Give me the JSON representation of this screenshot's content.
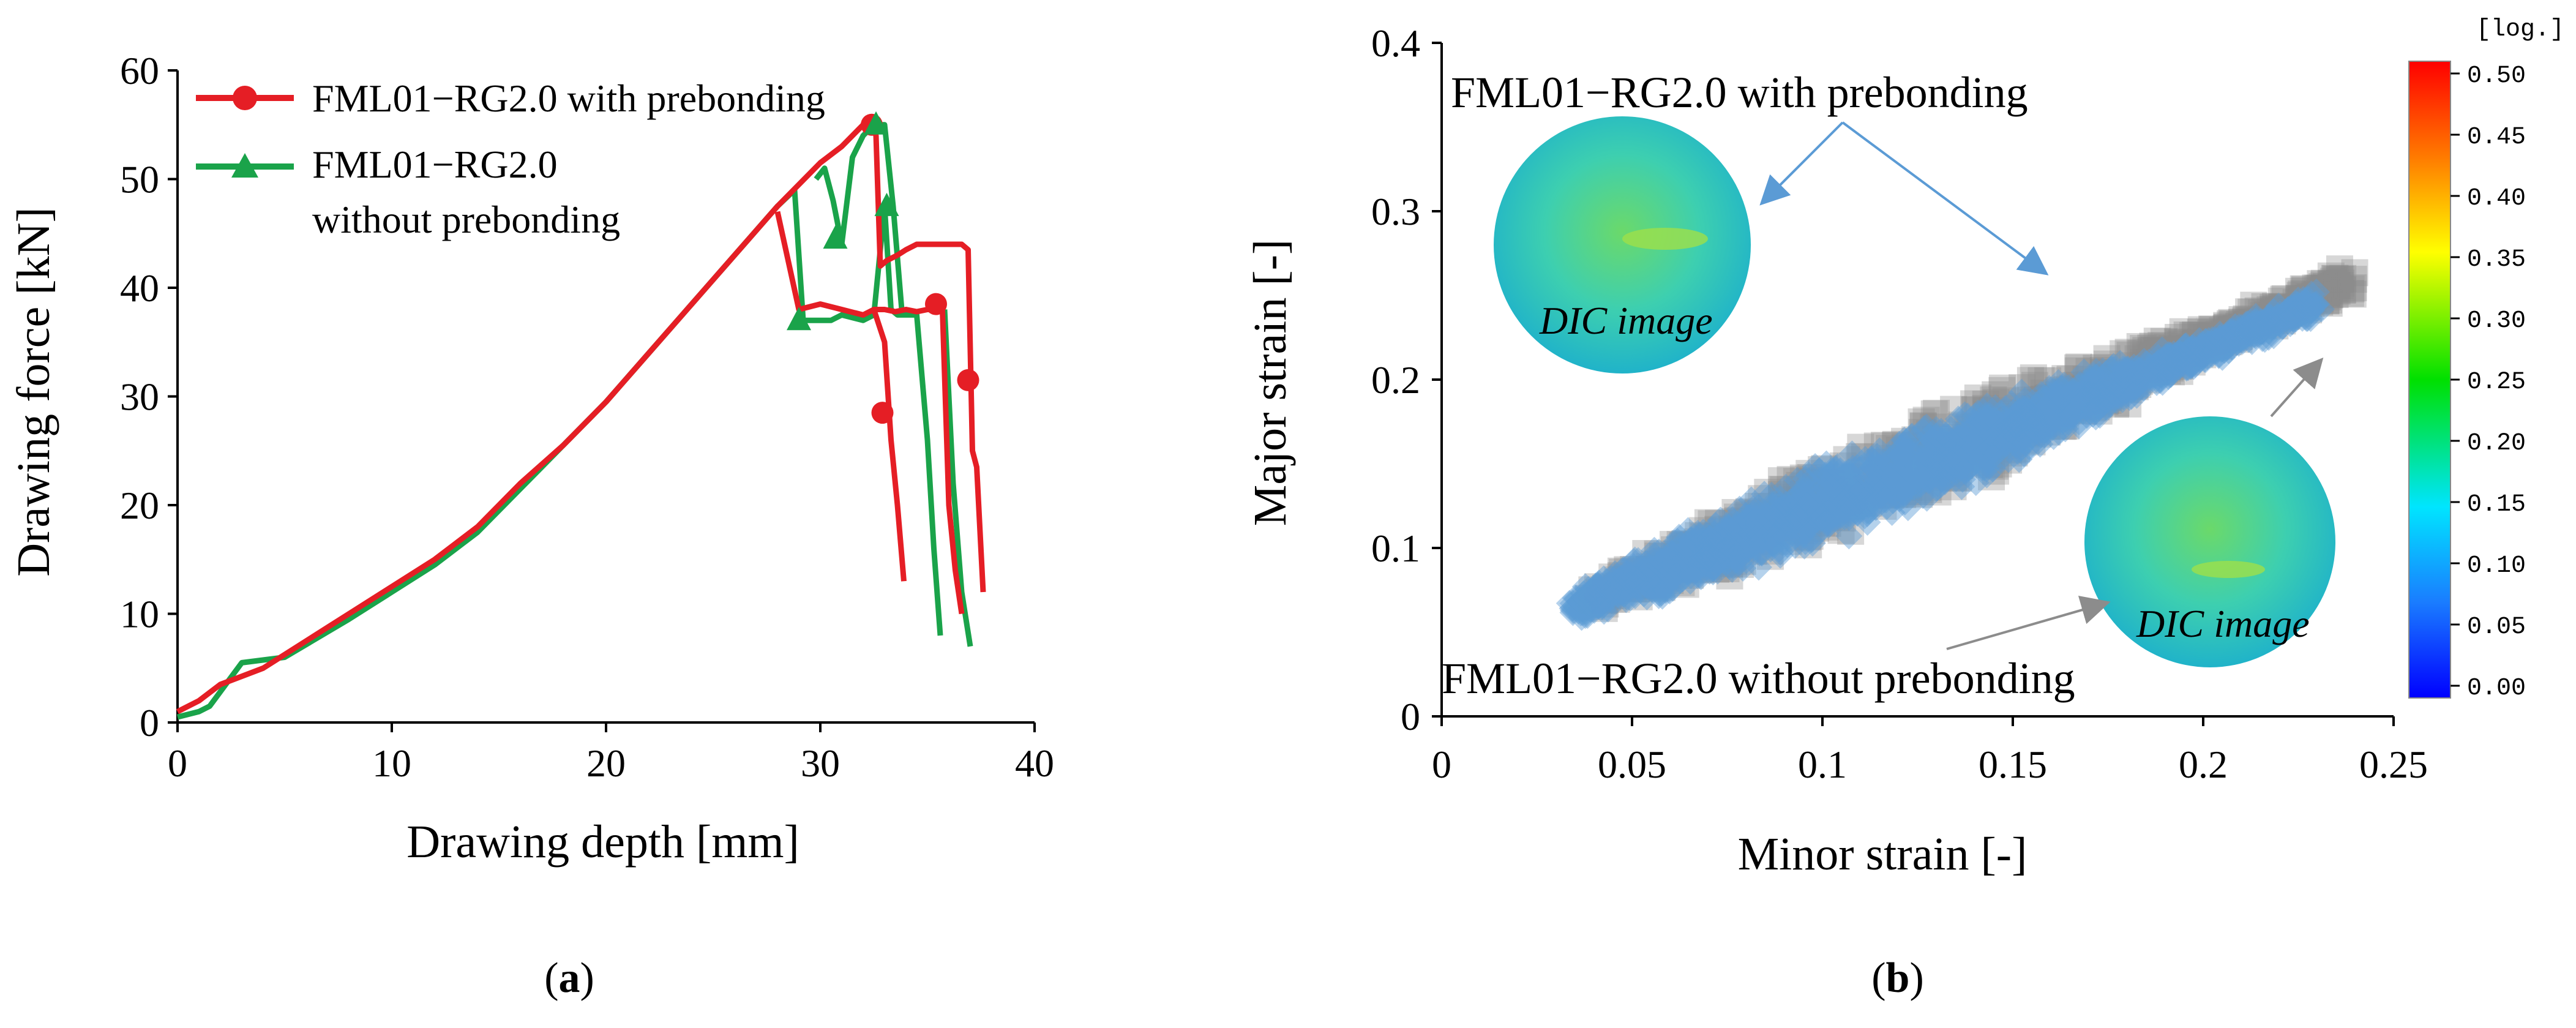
{
  "panels": {
    "a": {
      "label_open": "(",
      "label_letter": "a",
      "label_close": ")"
    },
    "b": {
      "label_open": "(",
      "label_letter": "b",
      "label_close": ")"
    }
  },
  "dic_label": "DIC image",
  "colors": {
    "with_prebonding_a": "#e51e25",
    "without_prebonding_a": "#1aa34a",
    "with_prebonding_b": "#5b9bd5",
    "without_prebonding_b": "#8c8c8c",
    "dic_face": "#35d3b0",
    "dic_spot": "#7fdc2a"
  },
  "chart_data": [
    {
      "id": "a",
      "type": "line",
      "xlabel": "Drawing depth [mm]",
      "ylabel": "Drawing force [kN]",
      "xlim": [
        0,
        40
      ],
      "ylim": [
        0,
        60
      ],
      "xticks": [
        0,
        10,
        20,
        30,
        40
      ],
      "yticks": [
        0,
        10,
        20,
        30,
        40,
        50,
        60
      ],
      "legend_position": "top-left",
      "series": [
        {
          "name": "FML01−RG2.0 with prebonding",
          "marker": "circle",
          "x": [
            0,
            1,
            2,
            4,
            6,
            8,
            10,
            12,
            14,
            16,
            18,
            20,
            22,
            24,
            26,
            28,
            30,
            31,
            32,
            32.4,
            32.6,
            32.8,
            33.1,
            33.6,
            34,
            34.5,
            35,
            35.4,
            35.8,
            36.2,
            36.6,
            36.9,
            37.1,
            37.3,
            37.6
          ],
          "values": [
            1,
            2,
            3.5,
            5,
            7.5,
            10,
            12.5,
            15,
            18,
            22,
            25.5,
            29.5,
            34,
            38.5,
            43,
            47.5,
            51.5,
            53,
            55,
            55,
            54,
            42,
            42.5,
            43,
            43.5,
            44,
            44,
            44,
            44,
            44,
            44,
            43.5,
            25,
            23.5,
            12
          ],
          "x2": [
            28,
            29,
            30,
            31,
            32,
            32.5,
            33,
            33.5,
            34,
            34.5,
            35,
            35.3,
            35.5,
            35.7,
            36,
            36.3,
            36.6
          ],
          "values2": [
            47,
            38,
            38.5,
            38,
            37.5,
            38,
            38,
            37.8,
            38,
            37.8,
            38,
            38,
            38,
            38,
            20,
            14,
            10
          ],
          "x3": [
            32.5,
            33,
            33.3,
            33.6,
            33.9
          ],
          "values3": [
            38,
            35,
            26,
            20,
            13
          ],
          "marker_points": [
            [
              32.4,
              55
            ],
            [
              32.9,
              28.5
            ],
            [
              35.4,
              38.5
            ],
            [
              36.9,
              31.5
            ]
          ]
        },
        {
          "name": "FML01−RG2.0",
          "name_line2": "without prebonding",
          "marker": "triangle",
          "x": [
            0,
            1,
            1.5,
            3,
            5,
            8,
            10,
            12,
            14,
            16,
            18,
            20,
            22,
            24,
            26,
            28,
            28.8,
            29.2,
            30,
            30.5,
            31,
            32,
            32.5,
            33,
            33.3,
            33.6,
            34,
            34.5,
            35,
            35.3,
            35.6
          ],
          "values": [
            0.5,
            1,
            1.5,
            5.5,
            6,
            9.5,
            12,
            14.5,
            17.5,
            21.5,
            25.5,
            29.5,
            34,
            38.5,
            43,
            47.5,
            49,
            37,
            37,
            37,
            37.5,
            37,
            37.5,
            47.5,
            38,
            37.5,
            37.5,
            37.5,
            26,
            16,
            8
          ],
          "x2": [
            29.8,
            30.2,
            30.6,
            31,
            31.5,
            32,
            32.5,
            33,
            33.4,
            33.8
          ],
          "values2": [
            50,
            51,
            48,
            44,
            52,
            54,
            55,
            55,
            47.5,
            38
          ],
          "x3": [
            35.8,
            36.2,
            36.6,
            37
          ],
          "values3": [
            38,
            22,
            12,
            7
          ],
          "marker_points": [
            [
              29,
              37
            ],
            [
              30.7,
              44.5
            ],
            [
              32.6,
              55
            ],
            [
              33.1,
              47.5
            ]
          ]
        }
      ]
    },
    {
      "id": "b",
      "type": "scatter",
      "xlabel": "Minor strain [-]",
      "ylabel": "Major strain [-]",
      "xlim": [
        0,
        0.25
      ],
      "ylim": [
        0,
        0.4
      ],
      "xticks": [
        "0",
        "0.05",
        "0.1",
        "0.15",
        "0.2",
        "0.25"
      ],
      "yticks": [
        "0",
        "0.1",
        "0.2",
        "0.3",
        "0.4"
      ],
      "series": [
        {
          "name": "FML01−RG2.0 with prebonding",
          "marker": "diamond",
          "band_start": [
            0.035,
            0.065
          ],
          "band_end": [
            0.23,
            0.245
          ],
          "band_halfwidth": 0.02
        },
        {
          "name": "FML01−RG2.0 without prebonding",
          "marker": "square",
          "band_start": [
            0.04,
            0.07
          ],
          "band_end": [
            0.24,
            0.26
          ],
          "band_halfwidth": 0.022
        }
      ],
      "colorbar": {
        "unit": "[log.]",
        "ticks": [
          "0.50",
          "0.45",
          "0.40",
          "0.35",
          "0.30",
          "0.25",
          "0.20",
          "0.15",
          "0.10",
          "0.05",
          "0.00"
        ]
      }
    }
  ]
}
